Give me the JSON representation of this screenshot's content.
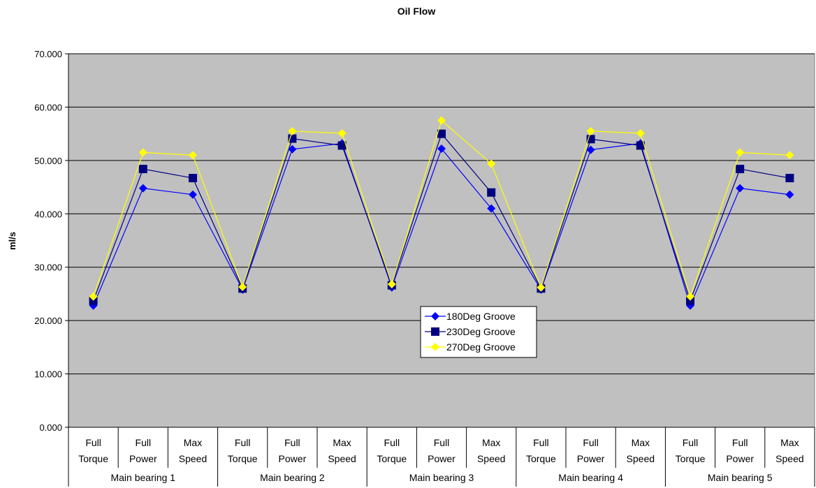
{
  "chart_data": {
    "type": "line",
    "title": "Oil Flow",
    "ylabel": "ml/s",
    "xlabel": "",
    "ylim": [
      0,
      70
    ],
    "ytick_step": 10,
    "ytick_labels": [
      "0.000",
      "10.000",
      "20.000",
      "30.000",
      "40.000",
      "50.000",
      "60.000",
      "70.000"
    ],
    "grid": true,
    "legend_position": "center-right",
    "plot_background": "#c0c0c0",
    "groups": [
      {
        "label": "Main bearing 1",
        "categories": [
          [
            "Full",
            "Torque"
          ],
          [
            "Full",
            "Power"
          ],
          [
            "Max",
            "Speed"
          ]
        ]
      },
      {
        "label": "Main bearing 2",
        "categories": [
          [
            "Full",
            "Torque"
          ],
          [
            "Full",
            "Power"
          ],
          [
            "Max",
            "Speed"
          ]
        ]
      },
      {
        "label": "Main bearing 3",
        "categories": [
          [
            "Full",
            "Torque"
          ],
          [
            "Full",
            "Power"
          ],
          [
            "Max",
            "Speed"
          ]
        ]
      },
      {
        "label": "Main bearing 4",
        "categories": [
          [
            "Full",
            "Torque"
          ],
          [
            "Full",
            "Power"
          ],
          [
            "Max",
            "Speed"
          ]
        ]
      },
      {
        "label": "Main bearing 5",
        "categories": [
          [
            "Full",
            "Torque"
          ],
          [
            "Full",
            "Power"
          ],
          [
            "Max",
            "Speed"
          ]
        ]
      }
    ],
    "series": [
      {
        "name": "180Deg Groove",
        "color": "#0000ff",
        "marker": "diamond",
        "values": [
          22.8,
          44.8,
          43.6,
          25.8,
          52.1,
          53.2,
          26.2,
          52.2,
          41.0,
          25.8,
          52.0,
          53.2,
          22.8,
          44.8,
          43.6
        ]
      },
      {
        "name": "230Deg Groove",
        "color": "#000080",
        "marker": "square",
        "values": [
          23.7,
          48.4,
          46.7,
          26.0,
          54.1,
          52.8,
          26.6,
          55.0,
          44.0,
          26.0,
          54.0,
          52.8,
          23.7,
          48.4,
          46.7
        ]
      },
      {
        "name": "270Deg Groove",
        "color": "#ffff00",
        "marker": "diamond",
        "values": [
          24.5,
          51.5,
          51.0,
          26.3,
          55.5,
          55.1,
          26.8,
          57.5,
          49.4,
          26.2,
          55.5,
          55.1,
          24.5,
          51.5,
          51.0
        ]
      }
    ]
  }
}
